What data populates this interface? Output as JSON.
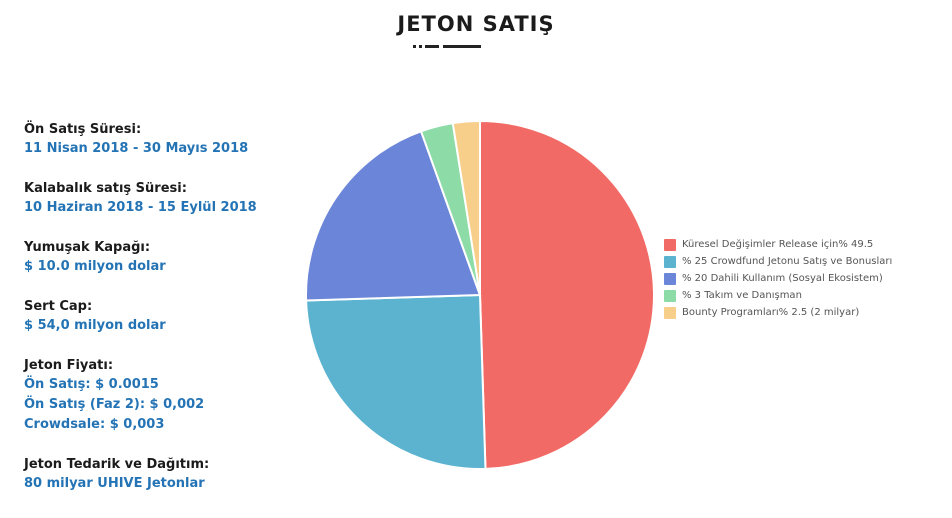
{
  "title": "JETON SATIŞ",
  "info": [
    {
      "label": "Ön Satış Süresi:",
      "values": [
        "11 Nisan 2018 - 30 Mayıs 2018"
      ]
    },
    {
      "label": "Kalabalık satış Süresi:",
      "values": [
        "10 Haziran 2018 - 15 Eylül 2018"
      ]
    },
    {
      "label": "Yumuşak Kapağı:",
      "values": [
        "$ 10.0 milyon dolar"
      ]
    },
    {
      "label": "Sert Cap:",
      "values": [
        "$ 54,0 milyon dolar"
      ]
    },
    {
      "label": "Jeton Fiyatı:",
      "values": [
        "Ön Satış: $ 0.0015",
        "Ön Satış (Faz 2): $ 0,002",
        "Crowdsale: $ 0,003"
      ]
    },
    {
      "label": "Jeton Tedarik ve Dağıtım:",
      "values": [
        "80 milyar UHIVE Jetonlar"
      ]
    }
  ],
  "chart_data": {
    "type": "pie",
    "title": "",
    "slices": [
      {
        "label": "Küresel Değişimler Release için% 49.5",
        "value": 49.5,
        "color": "#f26a65"
      },
      {
        "label": "% 25 Crowdfund Jetonu Satış ve Bonusları",
        "value": 25,
        "color": "#5bb3cf"
      },
      {
        "label": "% 20 Dahili Kullanım (Sosyal Ekosistem)",
        "value": 20,
        "color": "#6b86d8"
      },
      {
        "label": "% 3 Takım ve Danışman",
        "value": 3,
        "color": "#8ddca8"
      },
      {
        "label": "Bounty Programları% 2.5 (2 milyar)",
        "value": 2.5,
        "color": "#f7cf8a"
      }
    ],
    "legend_position": "right"
  }
}
